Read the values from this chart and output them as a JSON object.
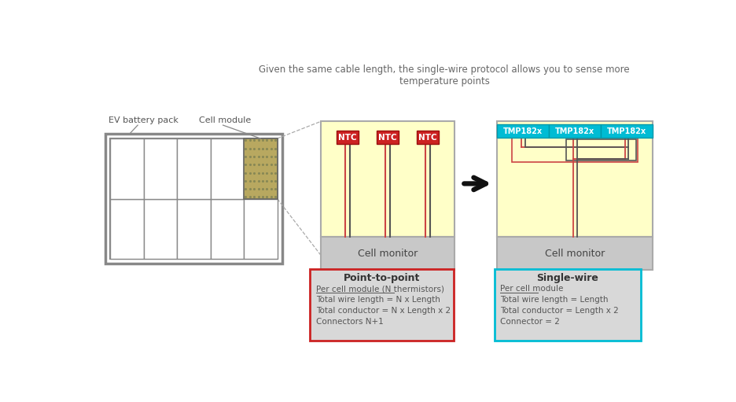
{
  "title_text": "Given the same cable length, the single-wire protocol allows you to sense more\ntemperature points",
  "title_fontsize": 8.5,
  "title_color": "#666666",
  "battery_label": "EV battery pack",
  "module_label": "Cell module",
  "cell_monitor_text": "Cell monitor",
  "ntc_label": "NTC",
  "tmp_label": "TMP182x",
  "ntc_bg": "#cc2222",
  "ntc_border": "#991111",
  "tmp_bg": "#00bcd4",
  "tmp_border": "#0099aa",
  "yellow_fill": "#ffffc8",
  "yellow_border": "#aaaaaa",
  "gray_fill": "#c8c8c8",
  "gray_border": "#aaaaaa",
  "wire_red": "#cc4444",
  "wire_dark": "#555555",
  "box1_border": "#cc2222",
  "box2_border": "#00bcd4",
  "box_fill": "#d8d8d8",
  "p2p_title": "Point-to-point",
  "p2p_line1": "Per cell module (N thermistors)",
  "p2p_line2": "Total wire length = N x Length",
  "p2p_line3": "Total conductor = N x Length x 2",
  "p2p_line4": "Connectors N+1",
  "sw_title": "Single-wire",
  "sw_line1": "Per cell module",
  "sw_line2": "Total wire length = Length",
  "sw_line3": "Total conductor = Length x 2",
  "sw_line4": "Connector = 2"
}
